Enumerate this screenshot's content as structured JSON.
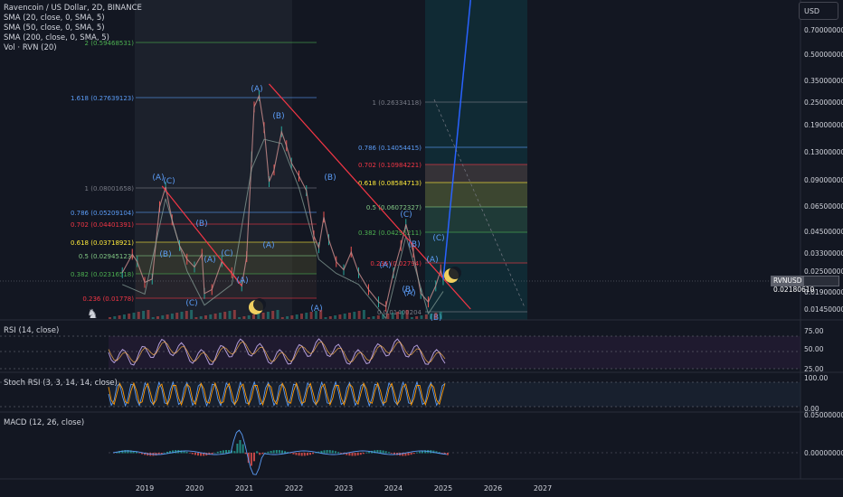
{
  "header": {
    "title": "Ravencoin / US Dollar, 2D, BINANCE",
    "indicators": [
      "SMA (20, close, 0, SMA, 5)",
      "SMA (50, close, 0, SMA, 5)",
      "SMA (200, close, 0, SMA, 5)",
      "Vol · RVN (20)"
    ],
    "currency_button": "USD"
  },
  "price_tag": {
    "symbol": "RVNUSD",
    "value": "0.02180610"
  },
  "colors": {
    "background": "#131722",
    "trendline": "#f23645",
    "projection": "#2962ff",
    "fib_text_blue": "#5b9cf6",
    "fib_text_red": "#f23645",
    "fib_text_yellow": "#ffeb3b",
    "fib_text_green": "#81c784"
  },
  "chart_data": [
    {
      "type": "line",
      "name_title": "Ravencoin / US Dollar, 2D, BINANCE",
      "scale": "log",
      "x_ticks": [
        "2019",
        "2020",
        "2021",
        "2022",
        "2023",
        "2024",
        "2025",
        "2026",
        "2027"
      ],
      "y_ticks": [
        "0.70000000",
        "0.50000000",
        "0.35000000",
        "0.25000000",
        "0.19000000",
        "0.13000000",
        "0.09000000",
        "0.06500000",
        "0.04500000",
        "0.03300000",
        "0.02500000",
        "0.01900000",
        "0.01450000"
      ],
      "price_path": [
        [
          2018.55,
          0.024
        ],
        [
          2018.75,
          0.031
        ],
        [
          2018.85,
          0.028
        ],
        [
          2019.0,
          0.021
        ],
        [
          2019.15,
          0.022
        ],
        [
          2019.3,
          0.06
        ],
        [
          2019.42,
          0.079
        ],
        [
          2019.55,
          0.05
        ],
        [
          2019.7,
          0.035
        ],
        [
          2019.85,
          0.029
        ],
        [
          2020.0,
          0.026
        ],
        [
          2020.15,
          0.031
        ],
        [
          2020.2,
          0.018
        ],
        [
          2020.35,
          0.019
        ],
        [
          2020.55,
          0.028
        ],
        [
          2020.75,
          0.024
        ],
        [
          2020.95,
          0.02
        ],
        [
          2021.05,
          0.03
        ],
        [
          2021.15,
          0.12
        ],
        [
          2021.2,
          0.24
        ],
        [
          2021.3,
          0.28
        ],
        [
          2021.4,
          0.18
        ],
        [
          2021.5,
          0.085
        ],
        [
          2021.6,
          0.1
        ],
        [
          2021.75,
          0.17
        ],
        [
          2021.85,
          0.14
        ],
        [
          2021.95,
          0.11
        ],
        [
          2022.1,
          0.092
        ],
        [
          2022.25,
          0.075
        ],
        [
          2022.4,
          0.04
        ],
        [
          2022.5,
          0.034
        ],
        [
          2022.6,
          0.052
        ],
        [
          2022.7,
          0.038
        ],
        [
          2022.85,
          0.028
        ],
        [
          2023.0,
          0.025
        ],
        [
          2023.15,
          0.032
        ],
        [
          2023.3,
          0.024
        ],
        [
          2023.5,
          0.019
        ],
        [
          2023.7,
          0.016
        ],
        [
          2023.85,
          0.015
        ],
        [
          2024.0,
          0.024
        ],
        [
          2024.15,
          0.035
        ],
        [
          2024.25,
          0.047
        ],
        [
          2024.4,
          0.032
        ],
        [
          2024.55,
          0.018
        ],
        [
          2024.7,
          0.016
        ],
        [
          2024.85,
          0.02
        ],
        [
          2024.95,
          0.025
        ],
        [
          2025.0,
          0.0218
        ]
      ],
      "wave_labels": [
        "(A)",
        "(C)",
        "(B)",
        "(A)",
        "(B)",
        "(A)",
        "(C)",
        "(B)",
        "(A)",
        "(A)",
        "(C)",
        "(B)",
        "(A)",
        "(A)",
        "(B)",
        "(C)",
        "(A)",
        "(B)",
        "(C)",
        "(A)",
        "(B)"
      ],
      "fib_left": [
        {
          "ratio": "2",
          "value": "(0.59468531)"
        },
        {
          "ratio": "1.618",
          "value": "(0.27639123)"
        },
        {
          "ratio": "1",
          "value": "(0.08001658)"
        },
        {
          "ratio": "0.786",
          "value": "(0.05209104)"
        },
        {
          "ratio": "0.702",
          "value": "(0.04401391)"
        },
        {
          "ratio": "0.618",
          "value": "(0.03718921)"
        },
        {
          "ratio": "0.5",
          "value": "(0.02945123)"
        },
        {
          "ratio": "0.382",
          "value": "(0.02316518)"
        },
        {
          "ratio": "0.236",
          "value": "(0.01778)"
        }
      ],
      "fib_right": [
        {
          "ratio": "1",
          "value": "(0.26334118)"
        },
        {
          "ratio": "0.786",
          "value": "(0.14054415)"
        },
        {
          "ratio": "0.702",
          "value": "(0.10984221)"
        },
        {
          "ratio": "0.618",
          "value": "(0.08584713)"
        },
        {
          "ratio": "0.5",
          "value": "(0.06072327)"
        },
        {
          "ratio": "0.382",
          "value": "(0.04295211)"
        },
        {
          "ratio": "0.236",
          "value": "(0.02794)"
        },
        {
          "ratio": "0",
          "value": "0.01400204"
        }
      ],
      "trendline_points": [
        [
          2019.35,
          0.08
        ],
        [
          2020.95,
          0.02
        ]
      ],
      "trendline2_points": [
        [
          2021.5,
          0.33
        ],
        [
          2025.55,
          0.0145
        ]
      ],
      "projection_points": [
        [
          2025.0,
          0.0218
        ],
        [
          2025.55,
          1.0
        ]
      ]
    },
    {
      "type": "line",
      "name_title": "RSI (14, close)",
      "y_ticks": [
        "75.00",
        "50.00",
        "25.00"
      ],
      "ylim": [
        20,
        90
      ]
    },
    {
      "type": "line",
      "name_title": "Stoch RSI (3, 3, 14, 14, close)",
      "y_ticks": [
        "100.00",
        "0.00"
      ],
      "ylim": [
        0,
        100
      ]
    },
    {
      "type": "bar",
      "name_title": "MACD (12, 26, close)",
      "y_ticks": [
        "0.05000000",
        "0.00000000"
      ]
    }
  ]
}
